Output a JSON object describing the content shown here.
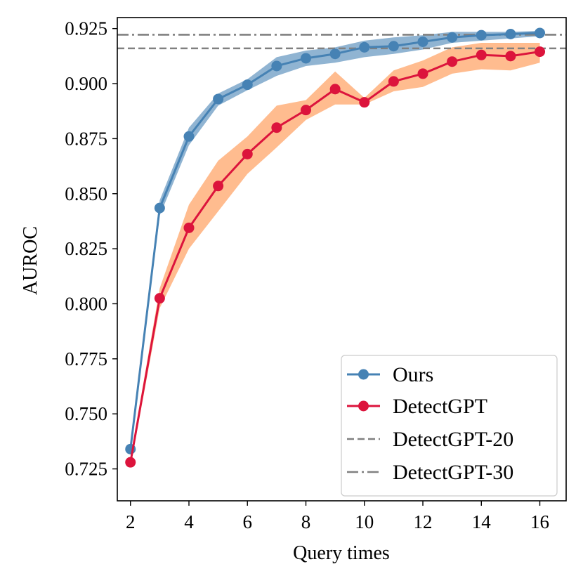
{
  "chart_data": {
    "type": "line",
    "title": "",
    "xlabel": "Query times",
    "ylabel": "AUROC",
    "xlim": [
      1.55,
      16.9
    ],
    "ylim": [
      0.7105,
      0.93
    ],
    "x_ticks": [
      2,
      4,
      6,
      8,
      10,
      12,
      14,
      16
    ],
    "x_tick_labels": [
      "2",
      "4",
      "6",
      "8",
      "10",
      "12",
      "14",
      "16"
    ],
    "y_ticks": [
      0.725,
      0.75,
      0.775,
      0.8,
      0.825,
      0.85,
      0.875,
      0.9,
      0.925
    ],
    "y_tick_labels": [
      "0.725",
      "0.750",
      "0.775",
      "0.800",
      "0.825",
      "0.850",
      "0.875",
      "0.900",
      "0.925"
    ],
    "grid": false,
    "legend_position": "bottom-right",
    "series": [
      {
        "name": "Ours",
        "color": "#4682b4",
        "band_color": "#4682b4",
        "x": [
          2,
          3,
          4,
          5,
          6,
          7,
          8,
          9,
          10,
          11,
          12,
          13,
          14,
          15,
          16
        ],
        "values": [
          0.734,
          0.8435,
          0.876,
          0.893,
          0.8995,
          0.908,
          0.9115,
          0.9135,
          0.9165,
          0.917,
          0.919,
          0.921,
          0.922,
          0.9225,
          0.923
        ],
        "lower": [
          0.732,
          0.84,
          0.872,
          0.89,
          0.897,
          0.9035,
          0.908,
          0.9095,
          0.912,
          0.9135,
          0.9155,
          0.9185,
          0.9195,
          0.9205,
          0.9215
        ],
        "upper": [
          0.736,
          0.847,
          0.88,
          0.8955,
          0.902,
          0.912,
          0.915,
          0.9165,
          0.9195,
          0.921,
          0.922,
          0.9235,
          0.9235,
          0.9235,
          0.924
        ]
      },
      {
        "name": "DetectGPT",
        "color": "#dc143c",
        "band_color": "#ffa060",
        "x": [
          2,
          3,
          4,
          5,
          6,
          7,
          8,
          9,
          10,
          11,
          12,
          13,
          14,
          15,
          16
        ],
        "values": [
          0.728,
          0.8025,
          0.8345,
          0.8535,
          0.868,
          0.88,
          0.888,
          0.8975,
          0.8915,
          0.901,
          0.9045,
          0.91,
          0.913,
          0.9125,
          0.9145
        ],
        "lower": [
          0.726,
          0.798,
          0.825,
          0.842,
          0.859,
          0.871,
          0.8835,
          0.8905,
          0.8905,
          0.8965,
          0.8985,
          0.9045,
          0.9065,
          0.906,
          0.9095
        ],
        "upper": [
          0.73,
          0.807,
          0.845,
          0.865,
          0.876,
          0.89,
          0.8925,
          0.9055,
          0.8935,
          0.906,
          0.9105,
          0.9165,
          0.9185,
          0.9185,
          0.9185
        ]
      }
    ],
    "reference_lines": [
      {
        "name": "DetectGPT-20",
        "value": 0.916,
        "style": "dashed",
        "color": "#808080"
      },
      {
        "name": "DetectGPT-30",
        "value": 0.9222,
        "style": "dashdot",
        "color": "#808080"
      }
    ]
  }
}
